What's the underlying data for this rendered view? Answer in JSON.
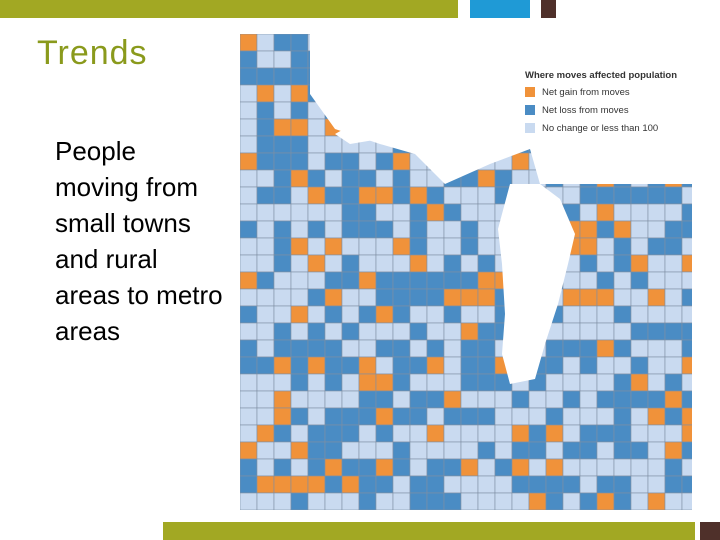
{
  "header": {
    "title": "Trends"
  },
  "body": {
    "text": "People moving from small towns and rural areas to metro areas"
  },
  "map": {
    "legend": {
      "title": "Where moves affected population",
      "items": [
        "Net gain from moves",
        "Net loss from moves",
        "No change or less than 100"
      ]
    }
  }
}
